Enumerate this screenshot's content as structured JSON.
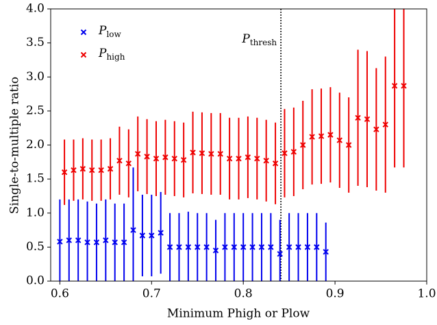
{
  "chart_data": {
    "type": "errorbar",
    "xlabel": "Minimum Phigh or Plow",
    "ylabel": "Single-to-multiple ratio",
    "xlim": [
      0.59,
      1.0
    ],
    "xticks": [
      0.6,
      0.7,
      0.8,
      0.9,
      {
        "value": 1.0,
        "label": "1.0"
      }
    ],
    "ylim": [
      0,
      4
    ],
    "yticks": [
      {
        "value": 0,
        "label": "0.0"
      },
      0.5,
      {
        "value": 1,
        "label": "1.0"
      },
      1.5,
      {
        "value": 2,
        "label": "2.0"
      },
      2.5,
      {
        "value": 3,
        "label": "3.0"
      },
      3.5,
      {
        "value": 4,
        "label": "4.0"
      }
    ],
    "threshold": {
      "x": 0.841,
      "label": "Pthresh"
    },
    "legend": "upper left",
    "series": [
      {
        "name": "Plow",
        "color": "#0000ee",
        "x": [
          0.6,
          0.61,
          0.62,
          0.63,
          0.64,
          0.65,
          0.66,
          0.67,
          0.68,
          0.69,
          0.7,
          0.71,
          0.72,
          0.73,
          0.74,
          0.75,
          0.76,
          0.77,
          0.78,
          0.79,
          0.8,
          0.81,
          0.82,
          0.83,
          0.84,
          0.85,
          0.86,
          0.87,
          0.88,
          0.89
        ],
        "values": [
          0.58,
          0.6,
          0.6,
          0.57,
          0.57,
          0.6,
          0.57,
          0.57,
          0.75,
          0.67,
          0.67,
          0.71,
          0.5,
          0.5,
          0.5,
          0.5,
          0.5,
          0.45,
          0.5,
          0.5,
          0.5,
          0.5,
          0.5,
          0.5,
          0.4,
          0.5,
          0.5,
          0.5,
          0.5,
          0.43
        ],
        "errors": [
          0.62,
          0.6,
          0.6,
          0.6,
          0.57,
          0.6,
          0.57,
          0.57,
          0.92,
          0.6,
          0.6,
          0.6,
          0.5,
          0.5,
          0.52,
          0.5,
          0.5,
          0.45,
          0.5,
          0.5,
          0.5,
          0.5,
          0.5,
          0.5,
          0.5,
          0.5,
          0.5,
          0.5,
          0.5,
          0.43
        ]
      },
      {
        "name": "Phigh",
        "color": "#ee0000",
        "x": [
          0.605,
          0.615,
          0.625,
          0.635,
          0.645,
          0.655,
          0.665,
          0.675,
          0.685,
          0.695,
          0.705,
          0.715,
          0.725,
          0.735,
          0.745,
          0.755,
          0.765,
          0.775,
          0.785,
          0.795,
          0.805,
          0.815,
          0.825,
          0.835,
          0.845,
          0.855,
          0.865,
          0.875,
          0.885,
          0.895,
          0.905,
          0.915,
          0.925,
          0.935,
          0.945,
          0.955,
          0.965,
          0.975
        ],
        "values": [
          1.6,
          1.63,
          1.65,
          1.63,
          1.63,
          1.65,
          1.77,
          1.73,
          1.87,
          1.83,
          1.8,
          1.82,
          1.8,
          1.78,
          1.89,
          1.88,
          1.87,
          1.87,
          1.8,
          1.8,
          1.82,
          1.8,
          1.77,
          1.73,
          1.88,
          1.9,
          2.0,
          2.12,
          2.13,
          2.15,
          2.07,
          2.0,
          2.4,
          2.38,
          2.23,
          2.3,
          2.87,
          2.87
        ],
        "errors": [
          0.48,
          0.45,
          0.45,
          0.45,
          0.45,
          0.45,
          0.5,
          0.5,
          0.55,
          0.55,
          0.55,
          0.55,
          0.55,
          0.55,
          0.6,
          0.6,
          0.6,
          0.6,
          0.6,
          0.6,
          0.6,
          0.6,
          0.6,
          0.6,
          0.65,
          0.65,
          0.65,
          0.7,
          0.7,
          0.7,
          0.7,
          0.7,
          1.0,
          1.0,
          0.9,
          1.0,
          1.2,
          1.2
        ]
      }
    ]
  }
}
